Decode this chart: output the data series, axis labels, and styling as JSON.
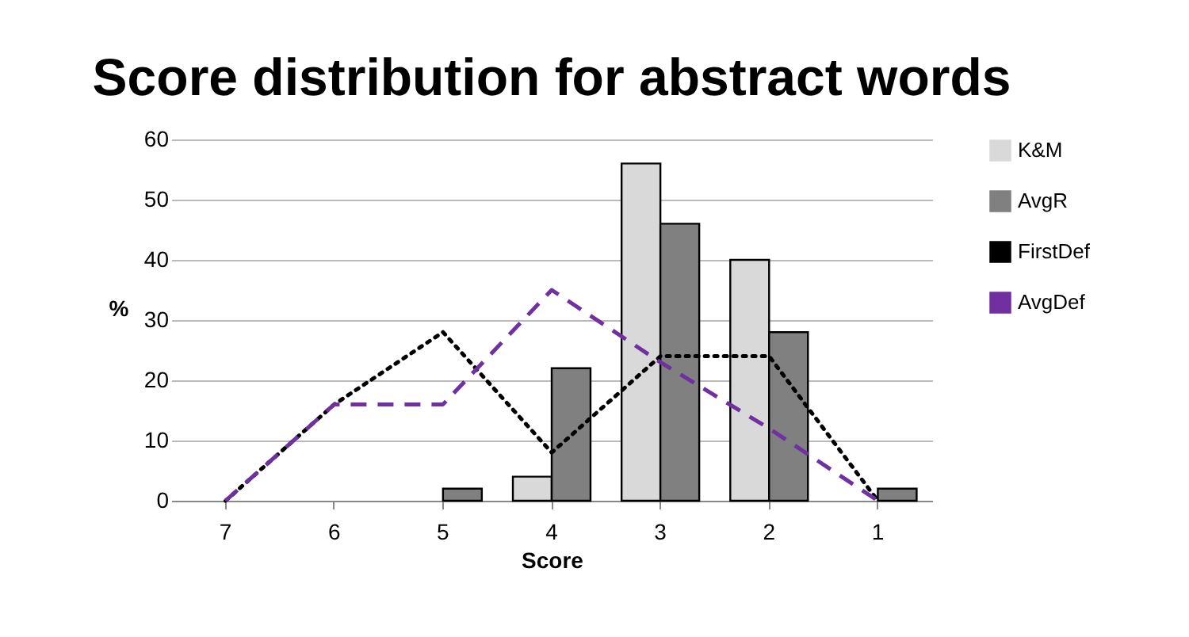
{
  "chart_data": {
    "type": "bar",
    "title": "Score distribution for abstract words",
    "xlabel": "Score",
    "ylabel": "%",
    "categories": [
      "7",
      "6",
      "5",
      "4",
      "3",
      "2",
      "1"
    ],
    "series": [
      {
        "name": "K&M",
        "type": "bar",
        "color": "#d9d9d9",
        "values": [
          0,
          0,
          0,
          4,
          56,
          40,
          0
        ]
      },
      {
        "name": "AvgR",
        "type": "bar",
        "color": "#808080",
        "values": [
          0,
          0,
          2,
          22,
          46,
          28,
          2
        ]
      },
      {
        "name": "FirstDef",
        "type": "line",
        "color": "#000000",
        "line_style": "dotted",
        "values": [
          0,
          16,
          28,
          8,
          24,
          24,
          0
        ]
      },
      {
        "name": "AvgDef",
        "type": "line",
        "color": "#7030a0",
        "line_style": "dashed",
        "values": [
          0,
          16,
          16,
          35,
          23,
          12,
          0
        ]
      }
    ],
    "ylim": [
      0,
      60
    ],
    "yticks": [
      0,
      10,
      20,
      30,
      40,
      50,
      60
    ],
    "grid": "y",
    "legend": "right",
    "marker": "none"
  }
}
